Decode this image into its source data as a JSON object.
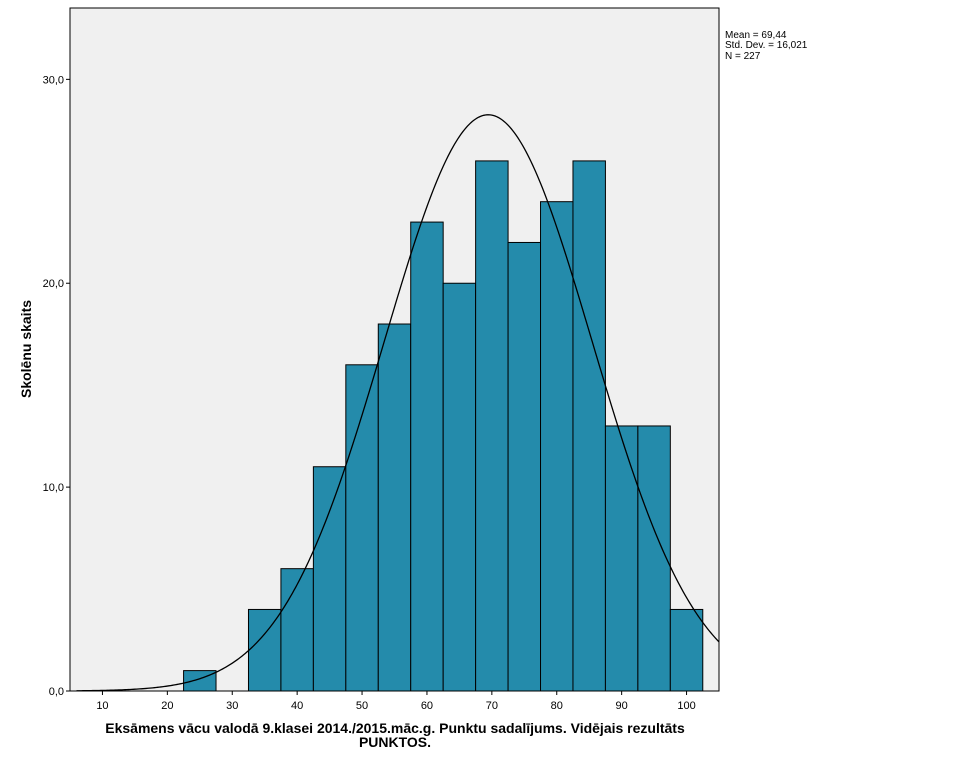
{
  "chart_data": {
    "type": "bar",
    "subtype": "histogram",
    "bin_width": 5,
    "bins": [
      {
        "start": 22.5,
        "end": 27.5,
        "count": 1
      },
      {
        "start": 32.5,
        "end": 37.5,
        "count": 4
      },
      {
        "start": 37.5,
        "end": 42.5,
        "count": 6
      },
      {
        "start": 42.5,
        "end": 47.5,
        "count": 11
      },
      {
        "start": 47.5,
        "end": 52.5,
        "count": 16
      },
      {
        "start": 52.5,
        "end": 57.5,
        "count": 18
      },
      {
        "start": 57.5,
        "end": 62.5,
        "count": 23
      },
      {
        "start": 62.5,
        "end": 67.5,
        "count": 20
      },
      {
        "start": 67.5,
        "end": 72.5,
        "count": 26
      },
      {
        "start": 72.5,
        "end": 77.5,
        "count": 22
      },
      {
        "start": 77.5,
        "end": 82.5,
        "count": 24
      },
      {
        "start": 82.5,
        "end": 87.5,
        "count": 26
      },
      {
        "start": 87.5,
        "end": 92.5,
        "count": 13
      },
      {
        "start": 92.5,
        "end": 97.5,
        "count": 13
      },
      {
        "start": 97.5,
        "end": 102.5,
        "count": 4
      }
    ],
    "normal_curve": {
      "mean": 69.44,
      "std_dev": 16.021,
      "n": 227
    },
    "xlim": [
      5,
      105
    ],
    "ylim": [
      0,
      33.5
    ],
    "x_ticks": [
      "10",
      "20",
      "30",
      "40",
      "50",
      "60",
      "70",
      "80",
      "90",
      "100"
    ],
    "y_ticks": [
      "0,0",
      "10,0",
      "20,0",
      "30,0"
    ],
    "xlabel_line1": "Eksāmens vācu valodā 9.klasei 2014./2015.māc.g. Punktu sadalījums. Vidējais rezultāts",
    "xlabel_line2": "PUNKTOS.",
    "ylabel": "Skolēnu skaits",
    "stats": {
      "mean": "Mean = 69,44",
      "std_dev": "Std. Dev. = 16,021",
      "n": "N = 227"
    },
    "grid": false,
    "colors": {
      "bar_fill": "#248BAB",
      "bar_stroke": "#000000",
      "plot_bg": "#F0F0F0",
      "curve": "#000000"
    }
  }
}
